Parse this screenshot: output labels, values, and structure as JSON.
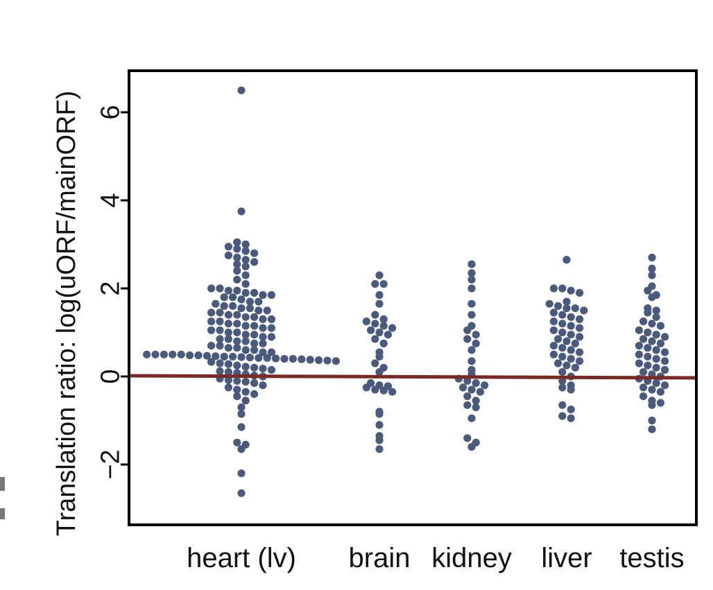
{
  "chart_data": {
    "type": "scatter",
    "subtype": "beeswarm",
    "title": "",
    "xlabel": "",
    "ylabel": "Translation ratio: log(uORF/mainORF)",
    "ylim": [
      -3.3,
      7.0
    ],
    "yticks": [
      -2,
      0,
      2,
      4,
      6
    ],
    "ytick_labels": [
      "−2",
      "0",
      "2",
      "4",
      "6"
    ],
    "categories": [
      "heart (lv)",
      "brain",
      "kidney",
      "liver",
      "testis"
    ],
    "reference_line": {
      "y": 0,
      "color": "#7a2a22"
    },
    "point_color": "#4a5a7d",
    "series": [
      {
        "name": "heart (lv)",
        "values": [
          6.5,
          3.75,
          3.05,
          3.0,
          2.95,
          2.9,
          2.85,
          2.8,
          2.75,
          2.7,
          2.65,
          2.6,
          2.55,
          2.5,
          2.4,
          2.3,
          2.2,
          2.1,
          2.0,
          2.0,
          1.95,
          1.95,
          1.9,
          1.9,
          1.85,
          1.85,
          1.8,
          1.8,
          1.75,
          1.7,
          1.7,
          1.65,
          1.6,
          1.6,
          1.55,
          1.55,
          1.5,
          1.5,
          1.45,
          1.45,
          1.4,
          1.4,
          1.35,
          1.35,
          1.3,
          1.3,
          1.25,
          1.25,
          1.2,
          1.2,
          1.15,
          1.15,
          1.1,
          1.1,
          1.05,
          1.05,
          1.0,
          1.0,
          0.95,
          0.95,
          0.9,
          0.9,
          0.85,
          0.85,
          0.8,
          0.8,
          0.75,
          0.75,
          0.7,
          0.7,
          0.65,
          0.65,
          0.6,
          0.6,
          0.55,
          0.55,
          0.5,
          0.5,
          0.5,
          0.5,
          0.5,
          0.48,
          0.48,
          0.47,
          0.46,
          0.45,
          0.45,
          0.44,
          0.43,
          0.42,
          0.42,
          0.41,
          0.4,
          0.4,
          0.39,
          0.38,
          0.37,
          0.36,
          0.35,
          0.33,
          0.3,
          0.28,
          0.25,
          0.22,
          0.2,
          0.18,
          0.15,
          0.12,
          0.1,
          0.08,
          0.05,
          0.02,
          0.0,
          -0.05,
          -0.08,
          -0.1,
          -0.12,
          -0.15,
          -0.2,
          -0.25,
          -0.3,
          -0.35,
          -0.4,
          -0.45,
          -0.55,
          -0.7,
          -0.85,
          -1.15,
          -1.5,
          -1.55,
          -1.65,
          -2.2,
          -2.65
        ]
      },
      {
        "name": "brain",
        "values": [
          2.3,
          2.1,
          2.1,
          1.85,
          1.65,
          1.4,
          1.3,
          1.25,
          1.2,
          1.15,
          1.1,
          1.05,
          1.0,
          0.95,
          0.85,
          0.75,
          0.55,
          0.45,
          0.3,
          0.2,
          0.1,
          -0.15,
          -0.2,
          -0.22,
          -0.25,
          -0.3,
          -0.32,
          -0.35,
          -0.8,
          -0.85,
          -1.1,
          -1.35,
          -1.45,
          -1.65
        ]
      },
      {
        "name": "kidney",
        "values": [
          2.55,
          2.35,
          2.2,
          2.0,
          1.65,
          1.4,
          1.15,
          1.05,
          0.95,
          0.85,
          0.75,
          0.6,
          0.35,
          0.15,
          0.05,
          -0.05,
          -0.1,
          -0.15,
          -0.2,
          -0.25,
          -0.3,
          -0.35,
          -0.45,
          -0.55,
          -0.65,
          -0.7,
          -0.95,
          -1.4,
          -1.5,
          -1.6
        ]
      },
      {
        "name": "liver",
        "values": [
          2.65,
          2.0,
          2.0,
          1.95,
          1.9,
          1.7,
          1.65,
          1.6,
          1.55,
          1.55,
          1.5,
          1.45,
          1.4,
          1.35,
          1.3,
          1.25,
          1.2,
          1.15,
          1.1,
          1.05,
          1.0,
          0.95,
          0.9,
          0.85,
          0.8,
          0.75,
          0.7,
          0.65,
          0.6,
          0.55,
          0.5,
          0.45,
          0.4,
          0.35,
          0.3,
          0.25,
          0.2,
          0.1,
          0.0,
          -0.1,
          -0.2,
          -0.25,
          -0.3,
          -0.65,
          -0.75,
          -0.9,
          -0.95
        ]
      },
      {
        "name": "testis",
        "values": [
          2.7,
          2.45,
          2.3,
          2.05,
          1.95,
          1.85,
          1.8,
          1.55,
          1.5,
          1.45,
          1.35,
          1.25,
          1.2,
          1.15,
          1.05,
          1.0,
          0.95,
          0.9,
          0.85,
          0.8,
          0.75,
          0.7,
          0.65,
          0.6,
          0.55,
          0.5,
          0.45,
          0.4,
          0.35,
          0.3,
          0.25,
          0.2,
          0.15,
          0.1,
          0.05,
          0.0,
          -0.05,
          -0.1,
          -0.15,
          -0.2,
          -0.25,
          -0.3,
          -0.35,
          -0.45,
          -0.55,
          -0.6,
          -0.65,
          -1.0,
          -1.2
        ]
      }
    ]
  }
}
